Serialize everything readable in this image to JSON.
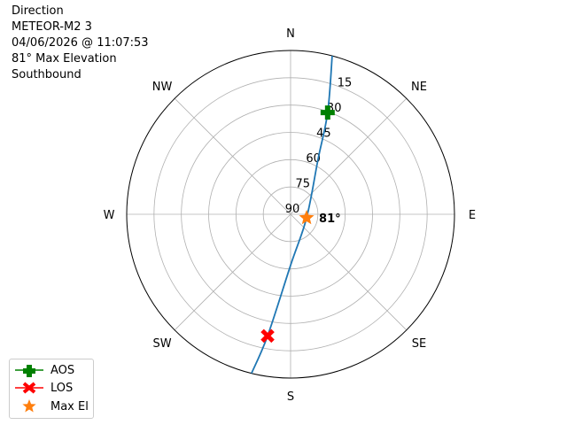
{
  "header": {
    "lines": [
      "Direction",
      "METEOR-M2 3",
      "04/06/2026 @ 11:07:53",
      "81° Max Elevation",
      "Southbound"
    ]
  },
  "chart_data": {
    "type": "polar",
    "theta_direction": "clockwise",
    "theta_zero": "N",
    "angular_labels": [
      {
        "az": 0,
        "label": "N"
      },
      {
        "az": 45,
        "label": "NE"
      },
      {
        "az": 90,
        "label": "E"
      },
      {
        "az": 135,
        "label": "SE"
      },
      {
        "az": 180,
        "label": "S"
      },
      {
        "az": 225,
        "label": "SW"
      },
      {
        "az": 270,
        "label": "W"
      },
      {
        "az": 315,
        "label": "NW"
      }
    ],
    "radial_axis": "elevation (center 90, edge 0)",
    "radial_ticks": [
      "15",
      "30",
      "45",
      "60",
      "75",
      "90"
    ],
    "grid": true,
    "track": {
      "color": "#1f77b4",
      "points": [
        {
          "az": 14.7,
          "el": 0
        },
        {
          "az": 20,
          "el": 30.5
        },
        {
          "az": 26.6,
          "el": 56.4
        },
        {
          "az": 102.5,
          "el": 81
        },
        {
          "az": 180,
          "el": 62
        },
        {
          "az": 190.7,
          "el": 22
        },
        {
          "az": 193.8,
          "el": 0
        }
      ]
    },
    "markers": [
      {
        "name": "AOS",
        "az": 20,
        "el": 30.5,
        "color": "#008000",
        "symbol": "plus"
      },
      {
        "name": "LOS",
        "az": 190.7,
        "el": 22,
        "color": "#ff0000",
        "symbol": "x"
      },
      {
        "name": "Max El",
        "az": 102.5,
        "el": 81,
        "color": "#ff7f0e",
        "symbol": "star"
      }
    ],
    "annotation": "81°",
    "legend_position": "bottom-left"
  }
}
